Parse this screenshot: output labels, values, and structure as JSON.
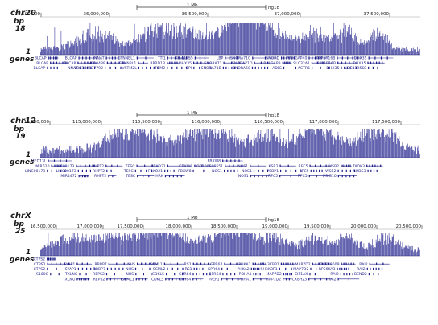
{
  "figure": {
    "panels": [
      {
        "id": "chr20",
        "chrom_label": "chr20",
        "bp_label": "bp",
        "max_label": "18",
        "min_label": "1",
        "genes_label": "genes",
        "scale_label": "1 Mb",
        "assembly": "hg18",
        "coords": [
          "35,500,000",
          "36,000,000",
          "36,500,000",
          "37,000,000",
          "37,500,000"
        ],
        "genes": [
          "BLCAP",
          "BLCAP",
          "BLCAP",
          "BLCAP",
          "BLCAP",
          "NNAT",
          "NNAT",
          "LINC00489",
          "LOC149837792",
          "CTNNBL1",
          "CTNNBL1",
          "VSTM2L",
          "TTI1",
          "RPRD1B",
          "TGM2",
          "KIAA1755",
          "DHX35",
          "GPI",
          "LBP",
          "SNORA71",
          "SNORA71B",
          "SNORA71C",
          "SNORA71D",
          "SNORA60",
          "SNORD",
          "RALGAPB",
          "ADIG",
          "ARHGAP40",
          "SLC32A1",
          "ACTR5",
          "PPP1R16B",
          "PPP1R16B",
          "DHX35",
          "DHX35",
          "DHX35",
          "LOC339568"
        ]
      },
      {
        "id": "chr12",
        "chrom_label": "chr12",
        "bp_label": "bp",
        "max_label": "19",
        "min_label": "1",
        "genes_label": "genes",
        "scale_label": "1 Mb",
        "assembly": "hg18",
        "coords": [
          "114,500,000",
          "115,000,000",
          "115,500,000",
          "116,000,000",
          "116,500,000",
          "117,000,000",
          "117,500,000"
        ],
        "genes": [
          "MED13L",
          "MIR620",
          "LINC00173",
          "LINC00173",
          "LINC00173",
          "MIR4472",
          "RHPT2",
          "RHPT2",
          "RHPT2",
          "TESC",
          "TESC",
          "TESC",
          "FBXO21",
          "FBXO21",
          "HRK",
          "FBXW8",
          "FBXW8",
          "FBXW8",
          "LOC100506551",
          "NOS1",
          "NOS1",
          "NOS1",
          "NOS1",
          "KSR2",
          "PEBP1",
          "RFC5",
          "RFC5",
          "RFC5",
          "RFC5",
          "WSB2",
          "WSB2",
          "VSIG10",
          "TAOK3",
          "SUDS3"
        ]
      },
      {
        "id": "chrX",
        "chrom_label": "chrX",
        "bp_label": "bp",
        "max_label": "25",
        "min_label": "1",
        "genes_label": "genes",
        "scale_label": "1 Mb",
        "assembly": "hg18",
        "coords": [
          "16,500,000",
          "17,000,000",
          "17,500,000",
          "18,000,000",
          "18,500,000",
          "19,000,000",
          "19,500,000",
          "20,000,000",
          "20,500,000"
        ],
        "genes": [
          "CTPS2",
          "CTPS2",
          "CTPS2",
          "S100G",
          "SYAP1",
          "SYAP1",
          "TXLNG",
          "TXLNG",
          "RBBP7",
          "RBBP7",
          "REPS2",
          "REPS2",
          "NHS",
          "NHS",
          "NHS",
          "SCML1",
          "SCML1",
          "SCML2",
          "CDKL5",
          "CDKL5",
          "RS1",
          "RS1",
          "GPR64",
          "GPR64",
          "GPR64",
          "GPR64",
          "GPR64",
          "PPEF1",
          "PHKA2",
          "PHKA2",
          "PDHA1",
          "PDHA1",
          "SH3KBP1",
          "SH3KBP1",
          "MAP7D2",
          "MAP7D2",
          "MAP7D2",
          "MAP7D2",
          "EIF1AX",
          "CXorf23",
          "LOC729609",
          "RPS6KA3",
          "RAI2",
          "RAI2",
          "RAI2",
          "RAI2",
          "BEND2"
        ]
      }
    ]
  }
}
